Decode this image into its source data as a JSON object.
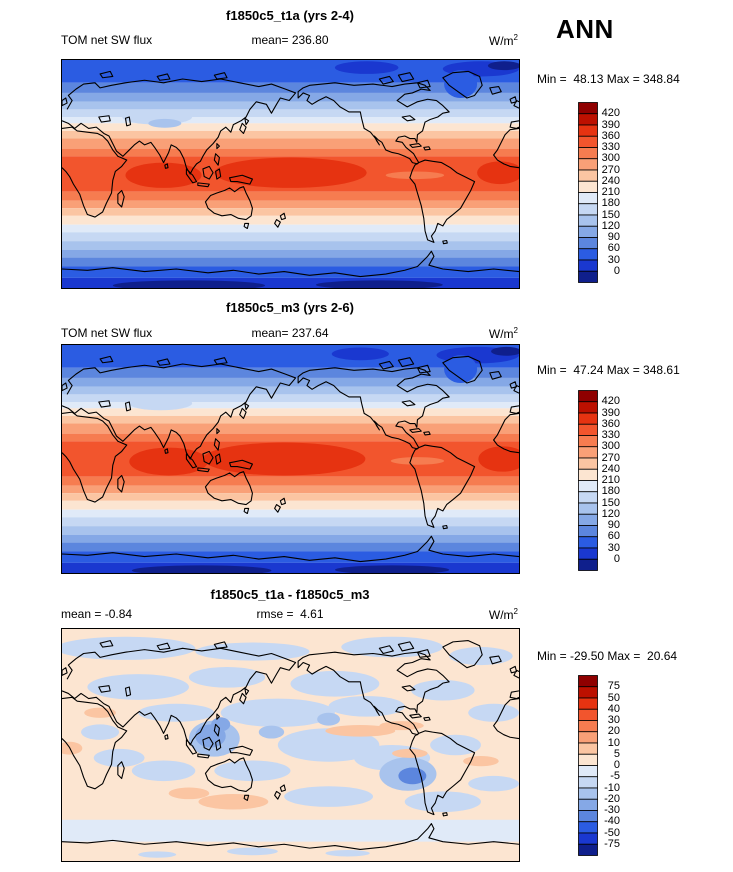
{
  "page": {
    "season_label": "ANN",
    "background": "#FFFFFF"
  },
  "palette": [
    "#8F0000",
    "#BC1000",
    "#E63311",
    "#F2552D",
    "#F67C50",
    "#F9A077",
    "#FBC5A2",
    "#FCE5D1",
    "#E0EAF8",
    "#C6D8F3",
    "#A8C3ED",
    "#85A8E6",
    "#5C86DE",
    "#2B5CE2",
    "#1A38D0",
    "#0F1F8C"
  ],
  "panels": [
    {
      "title": "f1850c5_t1a (yrs 2-4)",
      "var_label": "TOM net SW flux",
      "stat_label": "mean= 236.80",
      "units": "W/m",
      "units_exp": "2",
      "minmax": "Min =  48.13 Max = 348.84",
      "colorbar_labels": [
        "420",
        "390",
        "360",
        "330",
        "300",
        "270",
        "240",
        "210",
        "180",
        "150",
        "120",
        "90",
        "60",
        "30",
        "0"
      ]
    },
    {
      "title": "f1850c5_m3 (yrs 2-6)",
      "var_label": "TOM net SW flux",
      "stat_label": "mean= 237.64",
      "units": "W/m",
      "units_exp": "2",
      "minmax": "Min =  47.24 Max = 348.61",
      "colorbar_labels": [
        "420",
        "390",
        "360",
        "330",
        "300",
        "270",
        "240",
        "210",
        "180",
        "150",
        "120",
        "90",
        "60",
        "30",
        "0"
      ]
    },
    {
      "title": "f1850c5_t1a - f1850c5_m3",
      "var_label": "mean = -0.84",
      "stat_label": "rmse =  4.61",
      "units": "W/m",
      "units_exp": "2",
      "minmax": "Min = -29.50 Max =  20.64",
      "colorbar_labels": [
        "75",
        "50",
        "40",
        "30",
        "20",
        "10",
        "5",
        "0",
        "-5",
        "-10",
        "-20",
        "-30",
        "-40",
        "-50",
        "-75"
      ]
    }
  ],
  "chart_data": [
    {
      "type": "heatmap",
      "subtype": "global_lat_lon_contour_map",
      "title": "f1850c5_t1a (yrs 2-4)",
      "variable": "TOM net SW flux",
      "units": "W/m^2",
      "season": "ANN",
      "mean": 236.8,
      "min": 48.13,
      "max": 348.84,
      "contour_levels": [
        0,
        30,
        60,
        90,
        120,
        150,
        180,
        210,
        240,
        270,
        300,
        330,
        360,
        390,
        420
      ],
      "palette_direction": "blue_low_to_red_high",
      "projection": "equirectangular_pacific_centered",
      "pattern": "zonal bands: dark blue at poles, light blue mid-latitudes, pale near 40N/40S, orange subtropics, dark orange-red maximum 20N-20S"
    },
    {
      "type": "heatmap",
      "subtype": "global_lat_lon_contour_map",
      "title": "f1850c5_m3 (yrs 2-6)",
      "variable": "TOM net SW flux",
      "units": "W/m^2",
      "season": "ANN",
      "mean": 237.64,
      "min": 47.24,
      "max": 348.61,
      "contour_levels": [
        0,
        30,
        60,
        90,
        120,
        150,
        180,
        210,
        240,
        270,
        300,
        330,
        360,
        390,
        420
      ],
      "palette_direction": "blue_low_to_red_high",
      "projection": "equirectangular_pacific_centered",
      "pattern": "zonal bands: dark blue at poles, light blue mid-latitudes, pale near 40N/40S, orange subtropics, dark orange-red maximum 20N-20S"
    },
    {
      "type": "heatmap",
      "subtype": "global_lat_lon_difference_map",
      "title": "f1850c5_t1a - f1850c5_m3",
      "variable": "TOM net SW flux",
      "units": "W/m^2",
      "season": "ANN",
      "mean": -0.84,
      "rmse": 4.61,
      "min": -29.5,
      "max": 20.64,
      "contour_levels": [
        -75,
        -50,
        -40,
        -30,
        -20,
        -10,
        -5,
        0,
        5,
        10,
        20,
        30,
        40,
        50,
        75
      ],
      "palette_direction": "blue_negative_to_red_positive",
      "projection": "equirectangular_pacific_centered",
      "pattern": "mostly near-zero pale peach/pale blue patches; stronger negative (blue) blobs over Maritime Continent and SE Pacific off South America; weak positive (orange) along east Pacific ITCZ and south of Australia"
    }
  ]
}
